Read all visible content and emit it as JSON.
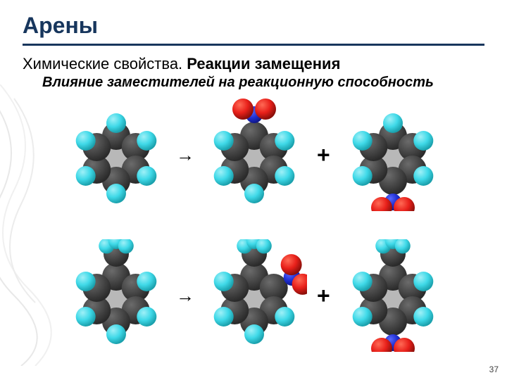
{
  "title": "Арены",
  "subtitle_plain": "Химические свойства. ",
  "subtitle_bold": "Реакции замещения",
  "subsubtitle": "Влияние заместителей на реакционную способность",
  "arrow": "→",
  "plus": "+",
  "pagenum": "37",
  "colors": {
    "carbon": "#6b6b6b",
    "carbon_dark": "#4a4a4a",
    "hydrogen": "#3fd9e8",
    "hydrogen_hl": "#9ff0f7",
    "oxygen": "#e8201a",
    "oxygen_hl": "#ff6a55",
    "nitrogen": "#2030d4",
    "nitrogen_hl": "#5a68ff",
    "ring_shadow": "#333333"
  },
  "style": {
    "title_color": "#17365d",
    "title_fontsize": 32,
    "subtitle_fontsize": 22,
    "subsubtitle_fontsize": 20,
    "hr_color": "#17365d",
    "plus_fontsize": 32,
    "arrow_fontsize": 26,
    "pagenum_fontsize": 12,
    "background": "#ffffff"
  },
  "molecules": {
    "row1": {
      "reactant": {
        "type": "benzene",
        "substituents": []
      },
      "product_a": {
        "type": "benzene",
        "substituents": [
          {
            "pos": "top",
            "group": "NO2"
          }
        ]
      },
      "product_b": {
        "type": "benzene",
        "substituents": [
          {
            "pos": "bottom",
            "group": "NO2"
          }
        ]
      }
    },
    "row2": {
      "reactant": {
        "type": "benzene",
        "substituents": [
          {
            "pos": "top",
            "group": "CH3"
          }
        ]
      },
      "product_a": {
        "type": "benzene",
        "substituents": [
          {
            "pos": "top",
            "group": "CH3"
          },
          {
            "pos": "right",
            "group": "NO2"
          }
        ]
      },
      "product_b": {
        "type": "benzene",
        "substituents": [
          {
            "pos": "top",
            "group": "CH3"
          },
          {
            "pos": "bottom",
            "group": "NO2"
          }
        ]
      }
    }
  }
}
